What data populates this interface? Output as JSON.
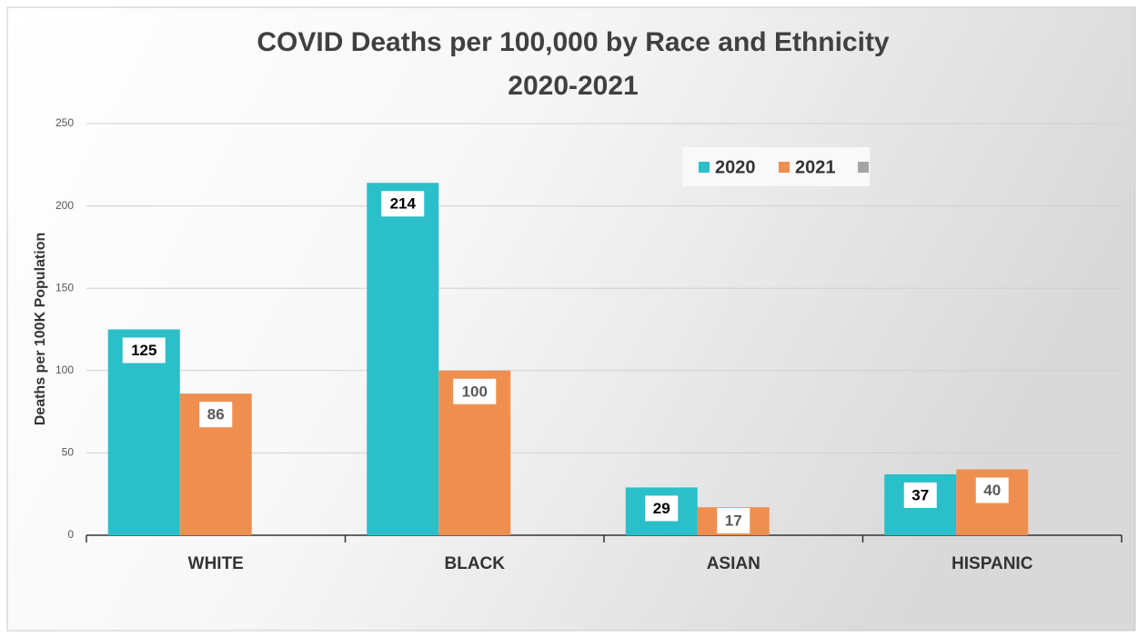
{
  "chart_data": {
    "type": "bar",
    "title": [
      "COVID Deaths per 100,000 by Race and Ethnicity",
      "2020-2021"
    ],
    "y_label": "Deaths per 100K Population",
    "categories": [
      "WHITE",
      "BLACK",
      "ASIAN",
      "HISPANIC"
    ],
    "series": [
      {
        "name": "2020",
        "color": "#2bbfc9",
        "values": [
          125,
          214,
          29,
          37
        ]
      },
      {
        "name": "2021",
        "color": "#ef8f4f",
        "values": [
          86,
          100,
          17,
          40
        ]
      }
    ],
    "ylim": [
      0,
      250
    ],
    "yticks": [
      0,
      50,
      100,
      150,
      200,
      250
    ],
    "grid": true,
    "legend": "top-right"
  }
}
